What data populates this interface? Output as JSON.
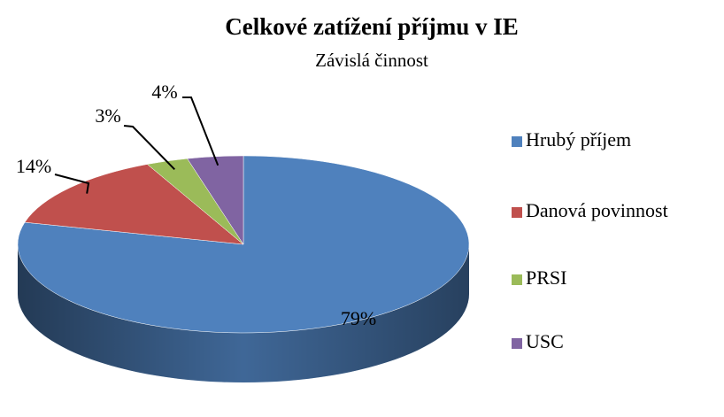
{
  "chart_data": {
    "type": "pie3d",
    "title": "Celkové zatížení příjmu v IE",
    "subtitle": "Závislá činnost",
    "categories": [
      "Hrubý příjem",
      "Danová povinnost",
      "PRSI",
      "USC"
    ],
    "values": [
      79,
      14,
      3,
      4
    ],
    "value_labels": [
      "79%",
      "14%",
      "3%",
      "4%"
    ],
    "colors": [
      "#4f81bd",
      "#c0504d",
      "#9bbb59",
      "#8064a2"
    ],
    "legend": "right"
  }
}
